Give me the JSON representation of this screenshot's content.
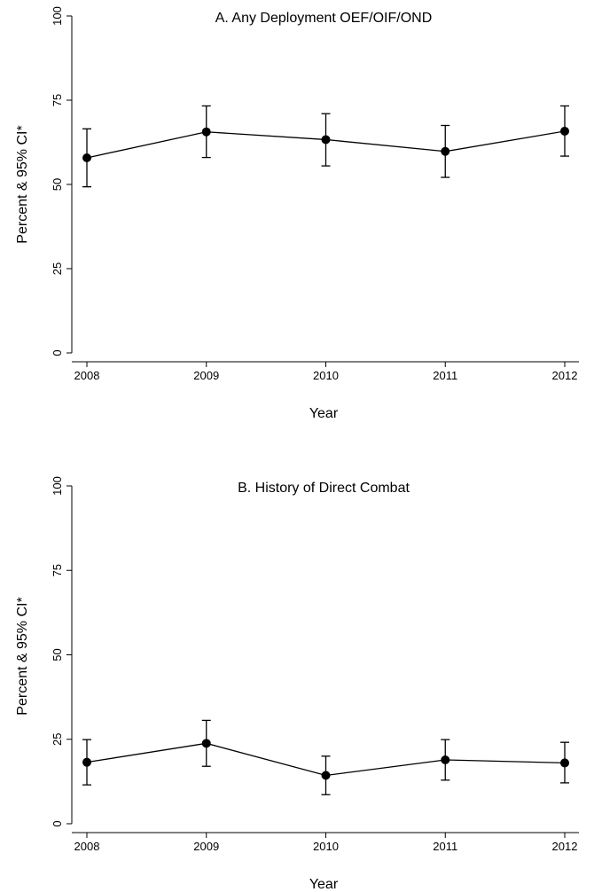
{
  "chart_data": [
    {
      "type": "line",
      "title": "A. Any Deployment OEF/OIF/OND",
      "xlabel": "Year",
      "ylabel": "Percent & 95% CI*",
      "x": [
        "2008",
        "2009",
        "2010",
        "2011",
        "2012"
      ],
      "ylim": [
        0,
        100
      ],
      "yticks": [
        "0",
        "25",
        "50",
        "75",
        "100"
      ],
      "grid": false,
      "series": [
        {
          "values": [
            57.9,
            65.6,
            63.3,
            59.8,
            65.8
          ],
          "ci_low": [
            49.3,
            58.0,
            55.5,
            52.1,
            58.4
          ],
          "ci_high": [
            66.5,
            73.3,
            71.0,
            67.5,
            73.3
          ]
        }
      ]
    },
    {
      "type": "line",
      "title": "B. History of Direct Combat",
      "xlabel": "Year",
      "ylabel": "Percent & 95% CI*",
      "x": [
        "2008",
        "2009",
        "2010",
        "2011",
        "2012"
      ],
      "ylim": [
        0,
        100
      ],
      "yticks": [
        "0",
        "25",
        "50",
        "75",
        "100"
      ],
      "grid": false,
      "series": [
        {
          "values": [
            18.2,
            23.8,
            14.3,
            18.9,
            18.0
          ],
          "ci_low": [
            11.5,
            17.0,
            8.6,
            12.9,
            12.1
          ],
          "ci_high": [
            24.9,
            30.6,
            20.0,
            24.9,
            24.1
          ]
        }
      ]
    }
  ]
}
